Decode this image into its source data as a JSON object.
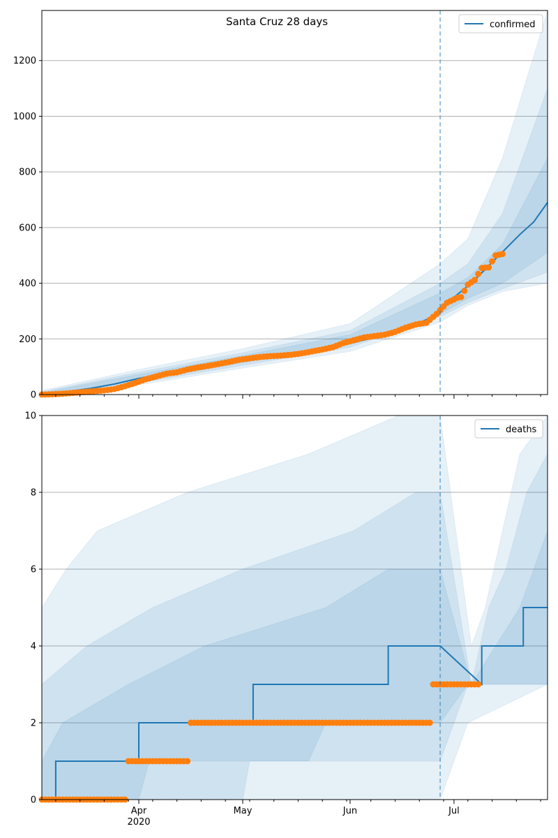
{
  "chart_data": [
    {
      "type": "line",
      "title": "Santa Cruz 28 days",
      "legend": "top-right",
      "grid": "horizontal",
      "xlim": [
        "2020-03-04",
        "2020-07-28"
      ],
      "ylim": [
        0,
        1380
      ],
      "yticks": [
        0,
        200,
        400,
        600,
        800,
        1000,
        1200
      ],
      "cutoff_date": "2020-06-27",
      "series": [
        {
          "name": "confirmed",
          "kind": "model-line",
          "color": "#1f77b4",
          "points": [
            [
              "2020-03-04",
              2
            ],
            [
              "2020-03-11",
              10
            ],
            [
              "2020-03-18",
              22
            ],
            [
              "2020-03-25",
              38
            ],
            [
              "2020-04-01",
              58
            ],
            [
              "2020-04-08",
              75
            ],
            [
              "2020-04-15",
              92
            ],
            [
              "2020-04-22",
              105
            ],
            [
              "2020-04-29",
              120
            ],
            [
              "2020-05-06",
              132
            ],
            [
              "2020-05-13",
              143
            ],
            [
              "2020-05-20",
              155
            ],
            [
              "2020-05-27",
              170
            ],
            [
              "2020-06-03",
              190
            ],
            [
              "2020-06-10",
              210
            ],
            [
              "2020-06-17",
              235
            ],
            [
              "2020-06-24",
              275
            ],
            [
              "2020-06-27",
              305
            ],
            [
              "2020-07-01",
              350
            ],
            [
              "2020-07-04",
              380
            ],
            [
              "2020-07-08",
              425
            ],
            [
              "2020-07-12",
              475
            ],
            [
              "2020-07-16",
              525
            ],
            [
              "2020-07-20",
              575
            ],
            [
              "2020-07-24",
              620
            ],
            [
              "2020-07-28",
              690
            ]
          ]
        },
        {
          "kind": "observed",
          "color": "#ff7f0e",
          "points": [
            [
              "2020-03-04",
              0
            ],
            [
              "2020-03-07",
              1
            ],
            [
              "2020-03-10",
              3
            ],
            [
              "2020-03-13",
              6
            ],
            [
              "2020-03-16",
              9
            ],
            [
              "2020-03-19",
              12
            ],
            [
              "2020-03-22",
              15
            ],
            [
              "2020-03-25",
              20
            ],
            [
              "2020-03-28",
              30
            ],
            [
              "2020-03-31",
              42
            ],
            [
              "2020-04-03",
              55
            ],
            [
              "2020-04-06",
              65
            ],
            [
              "2020-04-09",
              75
            ],
            [
              "2020-04-12",
              80
            ],
            [
              "2020-04-15",
              90
            ],
            [
              "2020-04-18",
              97
            ],
            [
              "2020-04-21",
              103
            ],
            [
              "2020-04-24",
              110
            ],
            [
              "2020-04-27",
              117
            ],
            [
              "2020-04-30",
              125
            ],
            [
              "2020-05-03",
              130
            ],
            [
              "2020-05-06",
              135
            ],
            [
              "2020-05-09",
              138
            ],
            [
              "2020-05-12",
              140
            ],
            [
              "2020-05-15",
              143
            ],
            [
              "2020-05-18",
              148
            ],
            [
              "2020-05-21",
              155
            ],
            [
              "2020-05-24",
              162
            ],
            [
              "2020-05-27",
              170
            ],
            [
              "2020-05-30",
              185
            ],
            [
              "2020-06-02",
              195
            ],
            [
              "2020-06-05",
              205
            ],
            [
              "2020-06-08",
              210
            ],
            [
              "2020-06-11",
              215
            ],
            [
              "2020-06-14",
              225
            ],
            [
              "2020-06-17",
              240
            ],
            [
              "2020-06-20",
              252
            ],
            [
              "2020-06-23",
              258
            ],
            [
              "2020-06-26",
              290
            ],
            [
              "2020-06-29",
              330
            ],
            [
              "2020-07-02",
              348
            ],
            [
              "2020-07-03",
              350
            ],
            [
              "2020-07-05",
              395
            ],
            [
              "2020-07-07",
              412
            ],
            [
              "2020-07-09",
              455
            ],
            [
              "2020-07-11",
              457
            ],
            [
              "2020-07-13",
              500
            ],
            [
              "2020-07-15",
              505
            ]
          ]
        }
      ],
      "bands": {
        "color": "#1f77b4",
        "dates": [
          "2020-03-04",
          "2020-04-01",
          "2020-05-01",
          "2020-06-01",
          "2020-06-27",
          "2020-07-05",
          "2020-07-15",
          "2020-07-28"
        ],
        "levels": [
          {
            "upper": [
              15,
              90,
              165,
              255,
              470,
              560,
              850,
              1380
            ],
            "lower": [
              0,
              35,
              95,
              155,
              260,
              320,
              370,
              400
            ]
          },
          {
            "upper": [
              10,
              80,
              150,
              230,
              400,
              470,
              650,
              1100
            ],
            "lower": [
              0,
              42,
              105,
              170,
              280,
              330,
              380,
              440
            ]
          },
          {
            "upper": [
              7,
              72,
              140,
              215,
              365,
              420,
              540,
              850
            ],
            "lower": [
              0,
              48,
              115,
              180,
              290,
              345,
              400,
              510
            ]
          }
        ]
      }
    },
    {
      "type": "line",
      "legend": "top-right",
      "grid": "horizontal",
      "xlim": [
        "2020-03-04",
        "2020-07-28"
      ],
      "ylim": [
        0,
        10
      ],
      "yticks": [
        0,
        2,
        4,
        6,
        8,
        10
      ],
      "xticks": [
        {
          "date": "2020-04-01",
          "label": "Apr",
          "sublabel": "2020"
        },
        {
          "date": "2020-05-01",
          "label": "May"
        },
        {
          "date": "2020-06-01",
          "label": "Jun"
        },
        {
          "date": "2020-07-01",
          "label": "Jul"
        }
      ],
      "cutoff_date": "2020-06-27",
      "series": [
        {
          "name": "deaths",
          "kind": "model-step",
          "color": "#1f77b4",
          "points": [
            [
              "2020-03-04",
              0
            ],
            [
              "2020-03-08",
              0
            ],
            [
              "2020-03-08",
              1
            ],
            [
              "2020-04-01",
              1
            ],
            [
              "2020-04-01",
              2
            ],
            [
              "2020-05-04",
              2
            ],
            [
              "2020-05-04",
              3
            ],
            [
              "2020-06-12",
              3
            ],
            [
              "2020-06-12",
              4
            ],
            [
              "2020-06-27",
              4
            ],
            [
              "2020-07-09",
              3
            ],
            [
              "2020-07-09",
              4
            ],
            [
              "2020-07-21",
              4
            ],
            [
              "2020-07-21",
              5
            ],
            [
              "2020-07-28",
              5
            ]
          ]
        },
        {
          "kind": "observed",
          "color": "#ff7f0e",
          "segments": [
            {
              "from": "2020-03-04",
              "to": "2020-03-28",
              "value": 0
            },
            {
              "from": "2020-03-29",
              "to": "2020-04-15",
              "value": 1
            },
            {
              "from": "2020-04-16",
              "to": "2020-06-24",
              "value": 2
            },
            {
              "from": "2020-06-25",
              "to": "2020-07-08",
              "value": 3
            }
          ]
        }
      ],
      "bands": {
        "color": "#1f77b4",
        "levels": [
          {
            "upper": [
              [
                "2020-03-04",
                5
              ],
              [
                "2020-03-11",
                6
              ],
              [
                "2020-03-20",
                7
              ],
              [
                "2020-04-15",
                8
              ],
              [
                "2020-05-20",
                9
              ],
              [
                "2020-06-15",
                10
              ],
              [
                "2020-06-27",
                10
              ],
              [
                "2020-07-06",
                4
              ],
              [
                "2020-07-10",
                5
              ],
              [
                "2020-07-15",
                7
              ],
              [
                "2020-07-20",
                9
              ],
              [
                "2020-07-28",
                10
              ]
            ],
            "lower": [
              [
                "2020-03-04",
                0
              ],
              [
                "2020-06-27",
                0
              ],
              [
                "2020-07-05",
                2
              ],
              [
                "2020-07-28",
                3
              ]
            ]
          },
          {
            "upper": [
              [
                "2020-03-04",
                3
              ],
              [
                "2020-03-17",
                4
              ],
              [
                "2020-04-05",
                5
              ],
              [
                "2020-05-01",
                6
              ],
              [
                "2020-06-02",
                7
              ],
              [
                "2020-06-20",
                8
              ],
              [
                "2020-06-27",
                8
              ],
              [
                "2020-07-06",
                3
              ],
              [
                "2020-07-11",
                5
              ],
              [
                "2020-07-16",
                6
              ],
              [
                "2020-07-22",
                8
              ],
              [
                "2020-07-28",
                9
              ]
            ],
            "lower": [
              [
                "2020-03-04",
                0
              ],
              [
                "2020-05-01",
                0
              ],
              [
                "2020-05-03",
                1
              ],
              [
                "2020-06-27",
                1
              ],
              [
                "2020-07-05",
                3
              ],
              [
                "2020-07-28",
                3
              ]
            ]
          },
          {
            "upper": [
              [
                "2020-03-04",
                1
              ],
              [
                "2020-03-10",
                2
              ],
              [
                "2020-03-29",
                3
              ],
              [
                "2020-04-20",
                4
              ],
              [
                "2020-05-25",
                5
              ],
              [
                "2020-06-12",
                6
              ],
              [
                "2020-06-27",
                6
              ],
              [
                "2020-07-06",
                3
              ],
              [
                "2020-07-13",
                4
              ],
              [
                "2020-07-20",
                5
              ],
              [
                "2020-07-28",
                7
              ]
            ],
            "lower": [
              [
                "2020-03-04",
                0
              ],
              [
                "2020-04-01",
                0
              ],
              [
                "2020-04-04",
                1
              ],
              [
                "2020-05-20",
                1
              ],
              [
                "2020-05-25",
                2
              ],
              [
                "2020-06-27",
                2
              ],
              [
                "2020-07-05",
                3
              ],
              [
                "2020-07-28",
                3
              ]
            ]
          }
        ]
      }
    }
  ]
}
